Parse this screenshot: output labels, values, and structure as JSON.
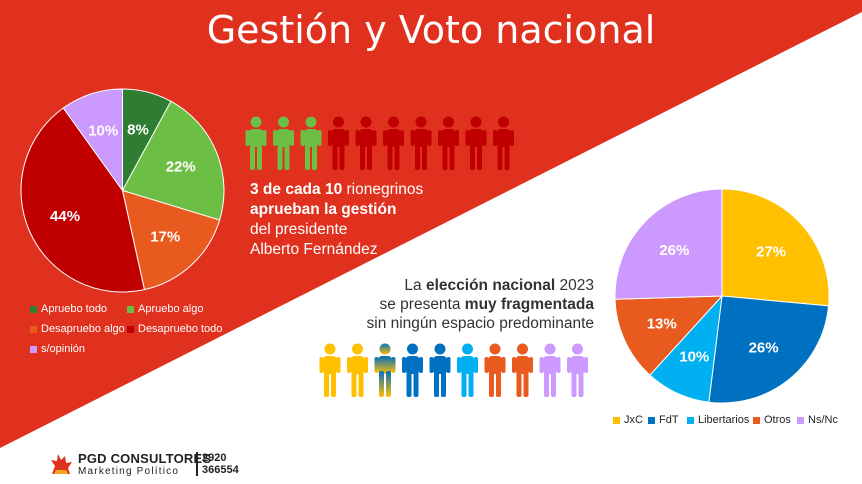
{
  "title": "Gestión y Voto nacional",
  "colors": {
    "red": "#E0301E",
    "white": "#FFFFFF"
  },
  "chart_data": [
    {
      "type": "pie",
      "series_labels": [
        "8%",
        "22%",
        "17%",
        "44%",
        "10%"
      ],
      "values": [
        8,
        22,
        17,
        44,
        10
      ],
      "categories": [
        "Apruebo todo",
        "Apruebo algo",
        "Desapruebo algo",
        "Desapruebo todo",
        "s/opinión"
      ],
      "colors": [
        "#2E7D32",
        "#6DBE45",
        "#E85A1E",
        "#C00000",
        "#CC99FF"
      ]
    },
    {
      "type": "pie",
      "series_labels": [
        "27%",
        "26%",
        "10%",
        "13%",
        "26%"
      ],
      "values": [
        27,
        26,
        10,
        13,
        26
      ],
      "categories": [
        "JxC",
        "FdT",
        "Libertarios",
        "Otros",
        "Ns/Nc"
      ],
      "colors": [
        "#FFC000",
        "#0070C0",
        "#00B0F0",
        "#E85A1E",
        "#CC99FF"
      ]
    }
  ],
  "approve": {
    "bold1": "3 de cada 10",
    "rest1": " rionegrinos",
    "bold2": "aprueban la gestión",
    "line3": "del presidente",
    "line4": "Alberto Fernández"
  },
  "frag": {
    "pre1": "La ",
    "bold1": "elección nacional",
    "post1": " 2023",
    "pre2": "se presenta ",
    "bold2": "muy fragmentada",
    "line3": "sin ningún espacio predominante"
  },
  "people_top": {
    "colors": [
      "#6DBE45",
      "#6DBE45",
      "#6DBE45",
      "#C00000",
      "#C00000",
      "#C00000",
      "#C00000",
      "#C00000",
      "#C00000",
      "#C00000"
    ]
  },
  "people_bottom": {
    "colors": [
      "#FFC000",
      "#FFC000",
      "mix",
      "#0070C0",
      "#0070C0",
      "#00B0F0",
      "#E85A1E",
      "#E85A1E",
      "#CC99FF",
      "#CC99FF"
    ]
  },
  "footer": {
    "brand": "PGD CONSULTORES",
    "sub": "Marketing Político",
    "phone1": "2920",
    "phone2": "366554"
  }
}
